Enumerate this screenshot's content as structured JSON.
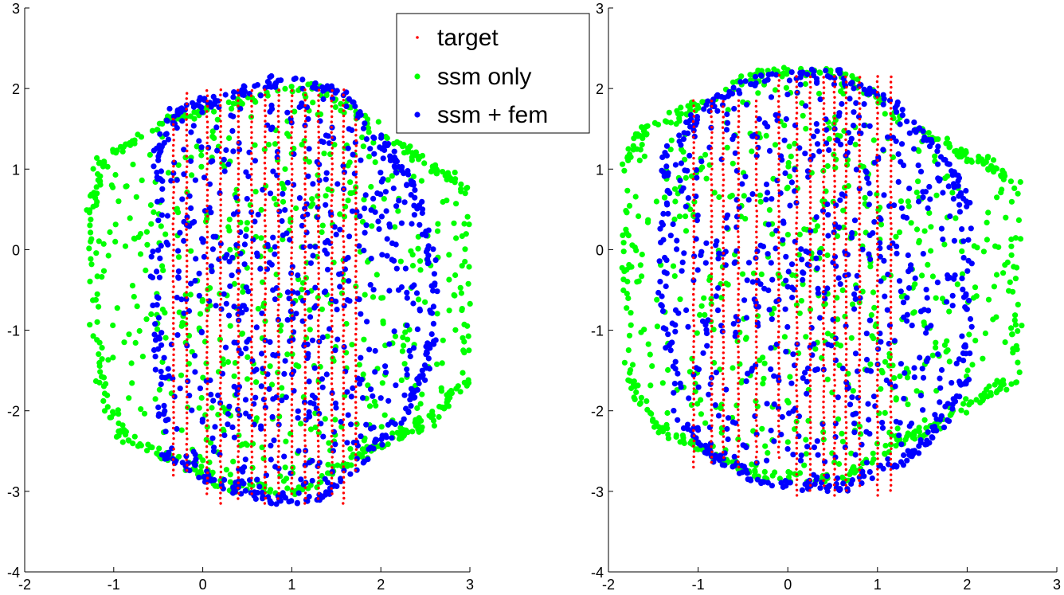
{
  "chart_data": [
    {
      "type": "scatter",
      "xlim": [
        -2,
        3
      ],
      "ylim": [
        -4,
        3
      ],
      "xticks": [
        "-2",
        "-1",
        "0",
        "1",
        "2",
        "3"
      ],
      "yticks": [
        "3",
        "2",
        "1",
        "0",
        "-1",
        "-2",
        "-3",
        "-4"
      ],
      "grid": false,
      "legend": "top-right",
      "series": [
        {
          "name": "target",
          "color": "#ff0000",
          "marker": "small-dot",
          "description_of_extent": "vertical columns of points at x ≈ -0.3..1.7, y ≈ -3.15..2.0",
          "x_range": [
            -0.35,
            1.72
          ],
          "y_range": [
            -3.15,
            2.0
          ]
        },
        {
          "name": "ssm only",
          "color": "#00ff00",
          "marker": "dot",
          "x_range": [
            -1.25,
            2.95
          ],
          "y_range": [
            -3.0,
            2.05
          ]
        },
        {
          "name": "ssm + fem",
          "color": "#0000ff",
          "marker": "dot",
          "x_range": [
            -0.55,
            2.6
          ],
          "y_range": [
            -3.1,
            2.1
          ]
        }
      ]
    },
    {
      "type": "scatter",
      "xlim": [
        -2,
        3
      ],
      "ylim": [
        -4,
        3
      ],
      "xticks": [
        "-2",
        "-1",
        "0",
        "1",
        "2",
        "3"
      ],
      "yticks": [
        "3",
        "2",
        "1",
        "0",
        "-1",
        "-2",
        "-3",
        "-4"
      ],
      "grid": false,
      "series": [
        {
          "name": "target",
          "color": "#ff0000",
          "x_range": [
            -1.1,
            1.2
          ],
          "y_range": [
            -3.1,
            2.2
          ]
        },
        {
          "name": "ssm only",
          "color": "#00ff00",
          "x_range": [
            -1.8,
            2.55
          ],
          "y_range": [
            -2.6,
            2.2
          ]
        },
        {
          "name": "ssm + fem",
          "color": "#0000ff",
          "x_range": [
            -1.4,
            2.0
          ],
          "y_range": [
            -3.0,
            2.2
          ]
        }
      ]
    }
  ],
  "legend": {
    "items": [
      {
        "label": "target",
        "color": "#ff0000"
      },
      {
        "label": "ssm only",
        "color": "#00ff00"
      },
      {
        "label": "ssm + fem",
        "color": "#0000ff"
      }
    ]
  }
}
